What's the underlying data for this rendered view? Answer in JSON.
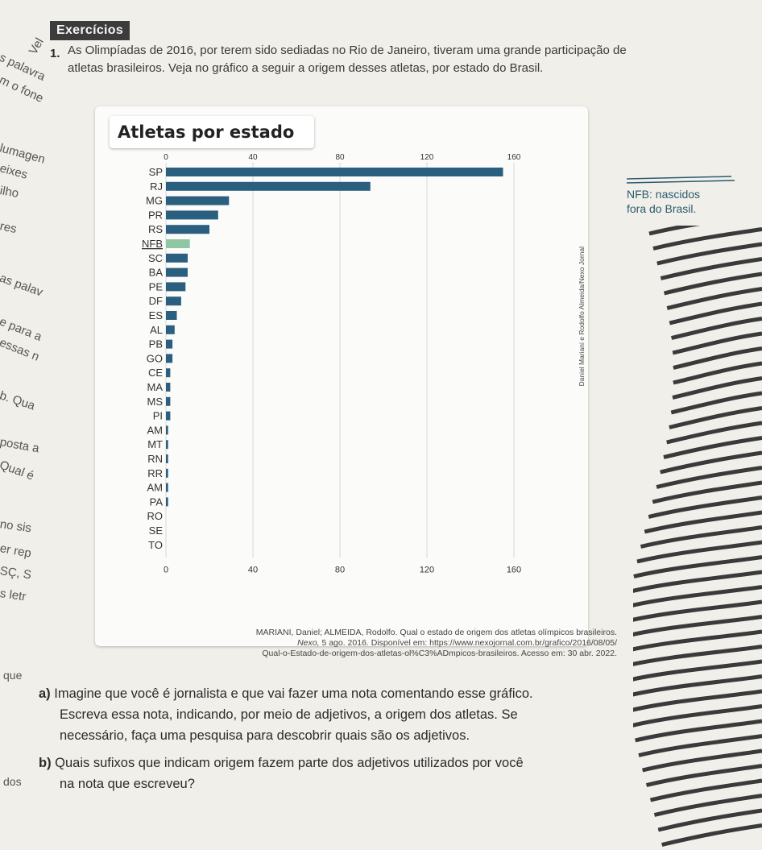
{
  "header": {
    "tag": "Exercícios"
  },
  "question": {
    "number": "1.",
    "text": "As Olimpíadas de 2016, por terem sido sediadas no Rio de Janeiro, tiveram uma grande participação de atletas brasileiros. Veja no gráfico a seguir a origem desses atletas, por estado do Brasil."
  },
  "margin_fragments": [
    "Vel",
    "s palavra",
    "m o fone",
    "lumagen",
    "eixes",
    "ilho",
    "res",
    "as palav",
    "e para a",
    "essas n",
    "b. Qua",
    "posta a",
    "Qual é",
    "no sis",
    "er rep",
    "SÇ, S",
    "s letr"
  ],
  "side_note": {
    "credit": "Daniel Mariani e Rodolfo Almeida/Nexo Jornal",
    "nfb_line1": "NFB: nascidos",
    "nfb_line2": "fora do Brasil."
  },
  "chart_data": {
    "type": "bar",
    "orientation": "horizontal",
    "title": "Atletas por estado",
    "categories": [
      "SP",
      "RJ",
      "MG",
      "PR",
      "RS",
      "NFB",
      "SC",
      "BA",
      "PE",
      "DF",
      "ES",
      "AL",
      "PB",
      "GO",
      "CE",
      "MA",
      "MS",
      "PI",
      "AM",
      "MT",
      "RN",
      "RR",
      "AM",
      "PA",
      "RO",
      "SE",
      "TO"
    ],
    "values": [
      155,
      94,
      29,
      24,
      20,
      11,
      10,
      10,
      9,
      7,
      5,
      4,
      3,
      3,
      2,
      2,
      2,
      2,
      1,
      1,
      1,
      1,
      1,
      1,
      0,
      0,
      0
    ],
    "highlight": {
      "category_index": 5,
      "color": "#8fc7a4"
    },
    "bar_color": "#2b5f80",
    "xlim": [
      0,
      160
    ],
    "ticks": [
      "0",
      "40",
      "80",
      "120",
      "160"
    ],
    "tick_values": [
      0,
      40,
      80,
      120,
      160
    ],
    "grid": true
  },
  "citation": {
    "line1": "MARIANI, Daniel; ALMEIDA, Rodolfo. Qual o estado de origem dos atletas olímpicos brasileiros.",
    "line2_italic": "Nexo,",
    "line2": " 5 ago. 2016. Disponível em: https://www.nexojornal.com.br/grafico/2016/08/05/",
    "line3": "Qual-o-Estado-de-origem-dos-atletas-ol%C3%ADmpicos-brasileiros. Acesso em: 30 abr. 2022."
  },
  "margin_word": "que",
  "margin_word2": "dos",
  "items": {
    "a_label": "a)",
    "a_line1": " Imagine que você é jornalista e que vai fazer uma nota comentando esse gráfico.",
    "a_line2": "Escreva essa nota, indicando, por meio de adjetivos, a origem dos atletas. Se",
    "a_line3": "necessário, faça uma pesquisa para descobrir quais são os adjetivos.",
    "b_label": "b)",
    "b_line1": " Quais sufixos que indicam origem fazem parte dos adjetivos utilizados por você",
    "b_line2": "na nota que escreveu?"
  }
}
